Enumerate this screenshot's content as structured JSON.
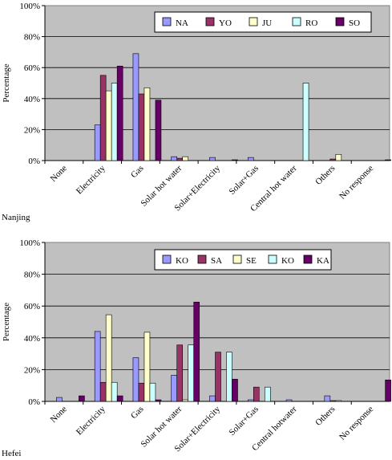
{
  "chart_data": [
    {
      "type": "bar",
      "caption": "Nanjing",
      "ylabel": "Percentage",
      "ylim": [
        0,
        100
      ],
      "yticks": [
        "0%",
        "20%",
        "40%",
        "60%",
        "80%",
        "100%"
      ],
      "grid": true,
      "legend_position": "top-right",
      "categories": [
        "None",
        "Electricity",
        "Gas",
        "Solar hot water",
        "Solar+Electricity",
        "Solar+Gas",
        "Central hot water",
        "Others",
        "No response"
      ],
      "series": [
        {
          "name": "NA",
          "color": "#9999ff",
          "values": [
            0,
            23,
            69,
            2.5,
            2,
            2,
            0,
            0,
            0
          ]
        },
        {
          "name": "YO",
          "color": "#993366",
          "values": [
            0,
            55,
            43,
            1.5,
            0,
            0,
            0,
            1,
            0
          ]
        },
        {
          "name": "JU",
          "color": "#ffffcc",
          "values": [
            0,
            45,
            47,
            2.5,
            0,
            0,
            0,
            4,
            0
          ]
        },
        {
          "name": "RO",
          "color": "#ccffff",
          "values": [
            0,
            50,
            0,
            0,
            0,
            0,
            50,
            0,
            0
          ]
        },
        {
          "name": "SO",
          "color": "#660066",
          "values": [
            0,
            61,
            39,
            0,
            0.5,
            0,
            0,
            0,
            0.5
          ]
        }
      ]
    },
    {
      "type": "bar",
      "caption": "Hefei",
      "ylabel": "Percentage",
      "ylim": [
        0,
        100
      ],
      "yticks": [
        "0%",
        "20%",
        "40%",
        "60%",
        "80%",
        "100%"
      ],
      "grid": true,
      "legend_position": "top-right",
      "categories": [
        "None",
        "Electricity",
        "Gas",
        "Solar hot water",
        "Solar+Electricity",
        "Solar+Gas",
        "Central hotwater",
        "Others",
        "No response"
      ],
      "series": [
        {
          "name": "KO",
          "color": "#9999ff",
          "values": [
            2.5,
            44,
            27.5,
            16.5,
            3.5,
            1,
            1,
            3.5,
            0
          ]
        },
        {
          "name": "SA",
          "color": "#993366",
          "values": [
            0,
            12,
            11.5,
            35.5,
            31,
            9,
            0,
            0.5,
            0
          ]
        },
        {
          "name": "SE",
          "color": "#ffffcc",
          "values": [
            0,
            54.5,
            43.5,
            1,
            0,
            0,
            0,
            0.5,
            0
          ]
        },
        {
          "name": "KO",
          "color": "#ccffff",
          "values": [
            0,
            12,
            11.5,
            35.5,
            31,
            9,
            0,
            0,
            0
          ]
        },
        {
          "name": "KA",
          "color": "#660066",
          "values": [
            3.5,
            3.5,
            1,
            62.5,
            14,
            0,
            0,
            0,
            13.5
          ]
        }
      ]
    }
  ]
}
